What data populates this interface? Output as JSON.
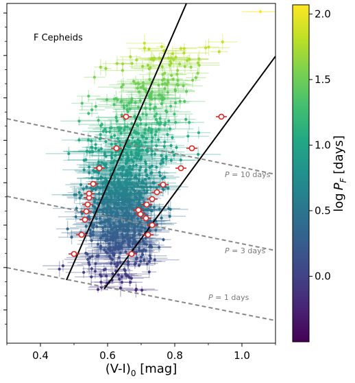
{
  "chart_data": {
    "type": "scatter",
    "title": "F Cepheids",
    "xlabel": "(V-I)$_0$ [mag]",
    "xlabel_main": "(V-I)",
    "xlabel_sub": "0",
    "xlabel_unit": " [mag]",
    "xlim": [
      0.3,
      1.1
    ],
    "xticks": [
      "0.4",
      "0.6",
      "0.8",
      "1.0"
    ],
    "xtick_values": [
      0.4,
      0.6,
      0.8,
      1.0
    ],
    "ylabel": "",
    "yaxis_tick_labels": "none",
    "grid": false,
    "colorbar": {
      "label_main": "log",
      "label_sym": "P",
      "label_sub": "F",
      "label_unit": " [days]",
      "range": [
        -0.5,
        2.07
      ],
      "ticks": [
        "0.0",
        "0.5",
        "1.0",
        "1.5",
        "2.0"
      ],
      "tick_values": [
        0.0,
        0.5,
        1.0,
        1.5,
        2.0
      ],
      "colormap": "viridis"
    },
    "period_lines": [
      {
        "label": "P = 1 days",
        "sym": "P",
        "text": " = 1 days"
      },
      {
        "label": "P = 3 days",
        "sym": "P",
        "text": " = 3 days"
      },
      {
        "label": "P = 10 days",
        "sym": "P",
        "text": " = 10 days"
      }
    ],
    "edge_lines": {
      "color": "#000000",
      "count": 2
    },
    "red_markers": {
      "blue_edge_x": [
        0.5,
        0.52,
        0.53,
        0.54,
        0.535,
        0.54,
        0.55,
        0.545,
        0.57,
        0.58,
        0.63,
        0.66
      ],
      "red_edge_x": [
        0.67,
        0.72,
        0.73,
        0.71,
        0.7,
        0.69,
        0.715,
        0.72,
        0.75,
        0.77,
        0.82,
        0.85,
        0.94
      ],
      "color": "#d62728"
    },
    "point_cloud": {
      "description_color_encodes": "log P_F",
      "approx_center_x": 0.63,
      "highest_point_logP": 2.07
    }
  }
}
